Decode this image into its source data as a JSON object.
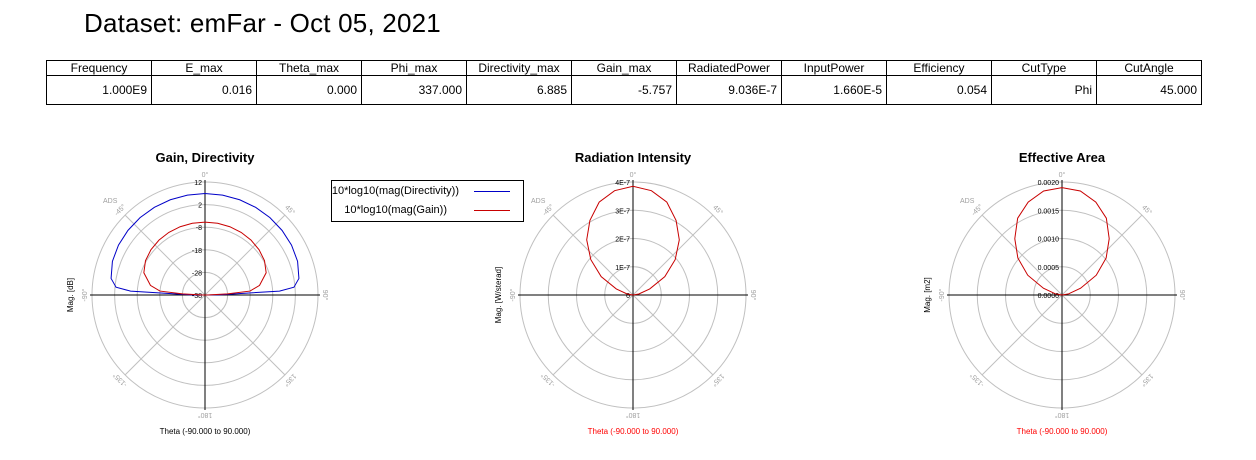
{
  "title": "Dataset: emFar - Oct 05, 2021",
  "summary_table": {
    "headers": [
      "Frequency",
      "E_max",
      "Theta_max",
      "Phi_max",
      "Directivity_max",
      "Gain_max",
      "RadiatedPower",
      "InputPower",
      "Efficiency",
      "CutType",
      "CutAngle"
    ],
    "values": [
      "1.000E9",
      "0.016",
      "0.000",
      "337.000",
      "6.885",
      "-5.757",
      "9.036E-7",
      "1.660E-5",
      "0.054",
      "Phi",
      "45.000"
    ]
  },
  "colors": {
    "directivity": "#0000c8",
    "gain": "#c80000",
    "red_label": "#ff0000",
    "grid": "#c0c0c0",
    "tick_label": "#a0a0a0"
  },
  "chart_data": [
    {
      "type": "polar",
      "title": "Gain, Directivity",
      "ylabel": "Mag. [dB]",
      "xlabel": "Theta (-90.000 to 90.000)",
      "angle_labels": [
        "0°",
        "45°",
        "90°",
        "135°",
        "180°",
        "-135°",
        "-90°",
        "-45°"
      ],
      "corner_label": "ADS",
      "radial_ticks": [
        "12",
        "2",
        "-8",
        "-18",
        "-28",
        "-38"
      ],
      "rlim": [
        -38,
        12
      ],
      "legend": [
        "10*log10(mag(Directivity))",
        "10*log10(mag(Gain))"
      ],
      "series": [
        {
          "name": "10*log10(mag(Directivity))",
          "color": "#0000c8",
          "theta": [
            -90,
            -89,
            -87,
            -85,
            -80,
            -70,
            -60,
            -50,
            -40,
            -30,
            -20,
            -10,
            0,
            10,
            20,
            30,
            40,
            50,
            60,
            70,
            80,
            85,
            87,
            89,
            90
          ],
          "values": [
            -38,
            -31,
            -5,
            1.5,
            4.2,
            5.6,
            6.2,
            6.5,
            6.7,
            6.8,
            6.85,
            6.88,
            6.885,
            6.88,
            6.85,
            6.8,
            6.7,
            6.5,
            6.2,
            5.6,
            4.2,
            1.5,
            -5,
            -31,
            -38
          ]
        },
        {
          "name": "10*log10(mag(Gain))",
          "color": "#c80000",
          "theta": [
            -90,
            -89,
            -87,
            -85,
            -80,
            -70,
            -60,
            -50,
            -40,
            -30,
            -20,
            -10,
            0,
            10,
            20,
            30,
            40,
            50,
            60,
            70,
            80,
            85,
            87,
            89,
            90
          ],
          "values": [
            -38,
            -36,
            -28,
            -18,
            -13.5,
            -9.2,
            -7.6,
            -6.8,
            -6.3,
            -6,
            -5.85,
            -5.78,
            -5.757,
            -5.78,
            -5.85,
            -6,
            -6.3,
            -6.8,
            -7.6,
            -9.2,
            -13.5,
            -18,
            -28,
            -36,
            -38
          ]
        }
      ]
    },
    {
      "type": "polar",
      "title": "Radiation Intensity",
      "ylabel": "Mag. [W/sterad]",
      "xlabel": "Theta (-90.000 to 90.000)",
      "xlabel_red": true,
      "angle_labels": [
        "0°",
        "45°",
        "90°",
        "135°",
        "180°",
        "-135°",
        "-90°",
        "-45°"
      ],
      "corner_label": "ADS",
      "radial_ticks": [
        "4E-7",
        "3E-7",
        "2E-7",
        "1E-7",
        "0"
      ],
      "rlim": [
        0,
        4e-07
      ],
      "series": [
        {
          "name": "Radiation Intensity",
          "color": "#c80000",
          "theta": [
            -90,
            -80,
            -70,
            -60,
            -50,
            -40,
            -30,
            -20,
            -10,
            0,
            10,
            20,
            30,
            40,
            50,
            60,
            70,
            80,
            90
          ],
          "values": [
            0,
            2.1e-08,
            6.3e-08,
            1.3e-07,
            1.95e-07,
            2.55e-07,
            3.05e-07,
            3.5e-07,
            3.75e-07,
            3.85e-07,
            3.75e-07,
            3.5e-07,
            3.05e-07,
            2.55e-07,
            1.95e-07,
            1.3e-07,
            6.3e-08,
            2.1e-08,
            0
          ]
        }
      ]
    },
    {
      "type": "polar",
      "title": "Effective Area",
      "ylabel": "Mag. [m2]",
      "xlabel": "Theta (-90.000 to 90.000)",
      "xlabel_red": true,
      "angle_labels": [
        "0°",
        "45°",
        "90°",
        "135°",
        "180°",
        "-135°",
        "-90°",
        "-45°"
      ],
      "corner_label": "ADS",
      "radial_ticks": [
        "0.0020",
        "0.0015",
        "0.0010",
        "0.0005",
        "0.0000"
      ],
      "rlim": [
        0,
        0.002
      ],
      "series": [
        {
          "name": "Effective Area",
          "color": "#c80000",
          "theta": [
            -90,
            -80,
            -70,
            -60,
            -50,
            -40,
            -30,
            -20,
            -10,
            0,
            10,
            20,
            30,
            40,
            50,
            60,
            70,
            80,
            90
          ],
          "values": [
            0,
            0.00012,
            0.00035,
            0.0007,
            0.00102,
            0.0013,
            0.00157,
            0.00175,
            0.00187,
            0.0019,
            0.00187,
            0.00175,
            0.00157,
            0.0013,
            0.00102,
            0.0007,
            0.00035,
            0.00012,
            0
          ]
        }
      ]
    }
  ]
}
